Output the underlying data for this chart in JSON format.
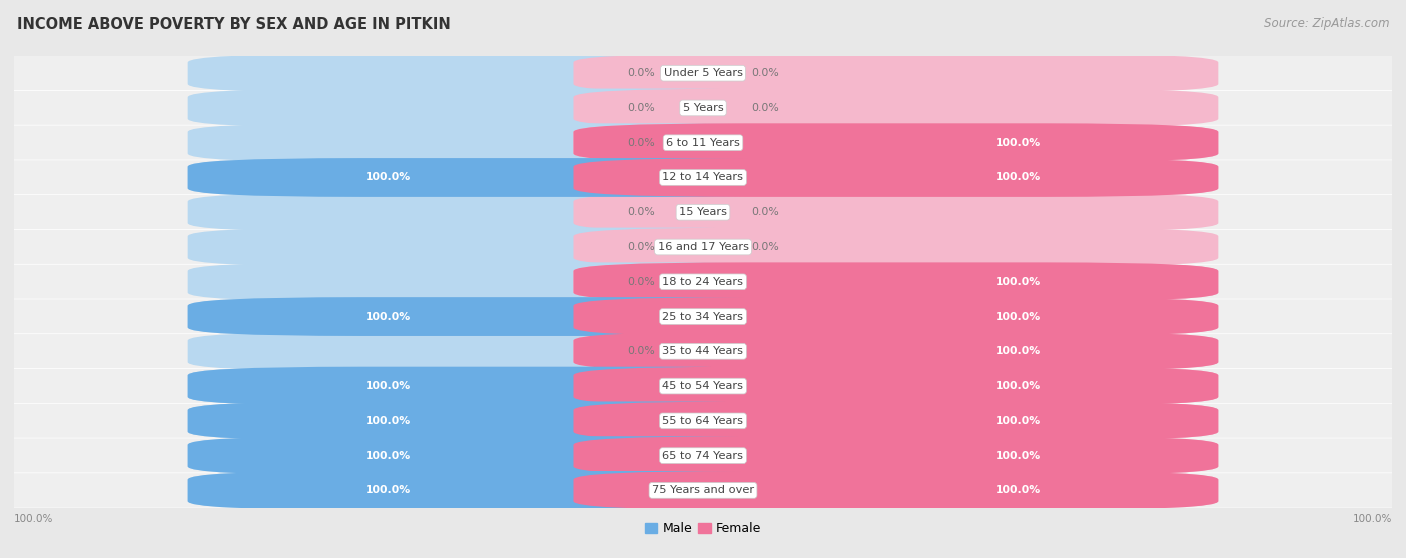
{
  "title": "INCOME ABOVE POVERTY BY SEX AND AGE IN PITKIN",
  "source": "Source: ZipAtlas.com",
  "categories": [
    "Under 5 Years",
    "5 Years",
    "6 to 11 Years",
    "12 to 14 Years",
    "15 Years",
    "16 and 17 Years",
    "18 to 24 Years",
    "25 to 34 Years",
    "35 to 44 Years",
    "45 to 54 Years",
    "55 to 64 Years",
    "65 to 74 Years",
    "75 Years and over"
  ],
  "male": [
    0.0,
    0.0,
    0.0,
    100.0,
    0.0,
    0.0,
    0.0,
    100.0,
    0.0,
    100.0,
    100.0,
    100.0,
    100.0
  ],
  "female": [
    0.0,
    0.0,
    100.0,
    100.0,
    0.0,
    0.0,
    100.0,
    100.0,
    100.0,
    100.0,
    100.0,
    100.0,
    100.0
  ],
  "male_color": "#6aade4",
  "female_color": "#f0739a",
  "male_bg_color": "#b8d8f0",
  "female_bg_color": "#f5b8cc",
  "male_label": "Male",
  "female_label": "Female",
  "fig_bg_color": "#e8e8e8",
  "row_bg_color": "#efefef",
  "row_sep_color": "#ffffff",
  "title_fontsize": 10.5,
  "source_fontsize": 8.5,
  "label_fontsize": 8.2,
  "value_fontsize": 7.8,
  "max_val": 100.0,
  "bottom_labels": [
    "100.0%",
    "100.0%"
  ]
}
